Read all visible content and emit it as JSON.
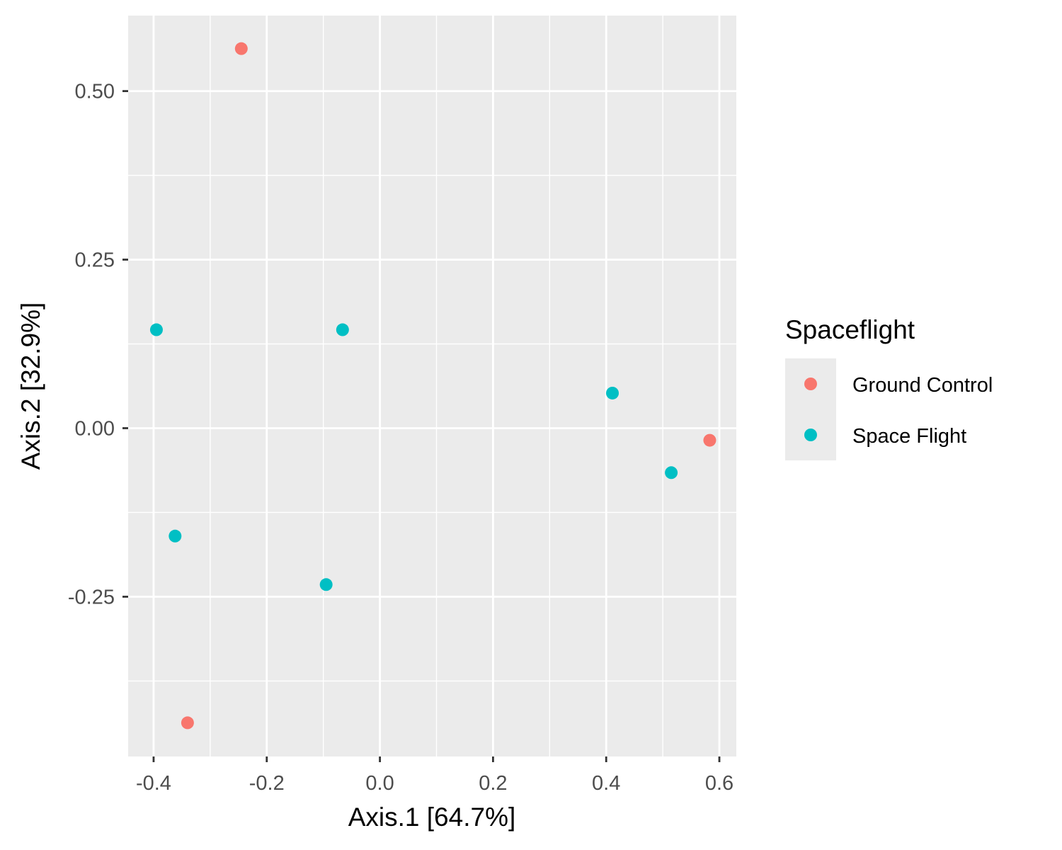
{
  "chart_data": {
    "type": "scatter",
    "xlabel": "Axis.1   [64.7%]",
    "ylabel": "Axis.2   [32.9%]",
    "xlim": [
      -0.445,
      0.63
    ],
    "ylim": [
      -0.487,
      0.612
    ],
    "x_ticks": [
      -0.4,
      -0.2,
      0.0,
      0.2,
      0.4,
      0.6
    ],
    "x_tick_labels": [
      "-0.4",
      "-0.2",
      "0.0",
      "0.2",
      "0.4",
      "0.6"
    ],
    "y_ticks": [
      0.5,
      0.25,
      0.0,
      -0.25
    ],
    "y_tick_labels": [
      "0.50",
      "0.25",
      "0.00",
      "-0.25"
    ],
    "grid": true,
    "legend": {
      "title": "Spaceflight",
      "position": "right"
    },
    "series": [
      {
        "name": "Ground Control",
        "color": "#F8766D",
        "points": [
          {
            "x": -0.245,
            "y": 0.563
          },
          {
            "x": 0.583,
            "y": -0.018
          },
          {
            "x": -0.34,
            "y": -0.437
          }
        ]
      },
      {
        "name": "Space Flight",
        "color": "#00BFC4",
        "points": [
          {
            "x": -0.395,
            "y": 0.146
          },
          {
            "x": -0.066,
            "y": 0.146
          },
          {
            "x": 0.411,
            "y": 0.052
          },
          {
            "x": 0.515,
            "y": -0.066
          },
          {
            "x": -0.362,
            "y": -0.16
          },
          {
            "x": -0.095,
            "y": -0.232
          }
        ]
      }
    ]
  }
}
